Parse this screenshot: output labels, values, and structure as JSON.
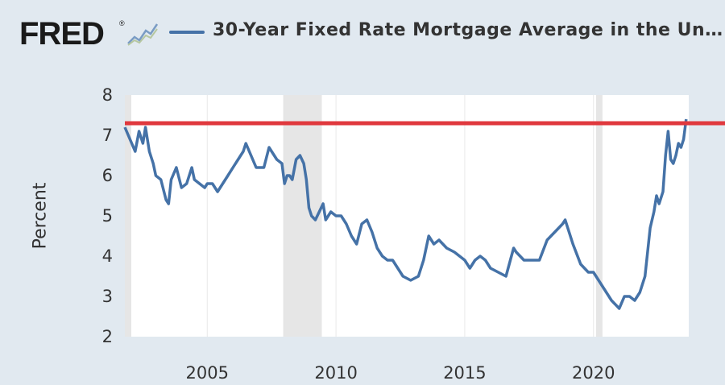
{
  "header": {
    "logo_text": "FRED",
    "logo_mark": "®",
    "logo_icon": "line-chart-icon",
    "title": "30-Year Fixed Rate Mortgage Average in the Un…"
  },
  "colors": {
    "background": "#e1e9f0",
    "plot_background": "#ffffff",
    "series": "#4572a7",
    "recession_band": "#e6e6e6",
    "reference_line": "#e0393e"
  },
  "chart_data": {
    "type": "line",
    "title": "30-Year Fixed Rate Mortgage Average in the Un…",
    "xlabel": "",
    "ylabel": "Percent",
    "xlim": [
      2001.8,
      2023.7
    ],
    "ylim": [
      2,
      8
    ],
    "x_ticks": [
      2005,
      2010,
      2015,
      2020
    ],
    "y_ticks": [
      2,
      3,
      4,
      5,
      6,
      7,
      8
    ],
    "grid": "vertical",
    "recessions": [
      [
        2001.8,
        2001.85
      ],
      [
        2007.95,
        2009.45
      ],
      [
        2020.1,
        2020.3
      ]
    ],
    "reference_lines": [
      {
        "y": 7.3,
        "color": "#e0393e"
      }
    ],
    "series": [
      {
        "x": [
          2001.8,
          2002.0,
          2002.2,
          2002.35,
          2002.5,
          2002.6,
          2002.75,
          2002.9,
          2003.0,
          2003.2,
          2003.4,
          2003.5,
          2003.6,
          2003.8,
          2004.0,
          2004.2,
          2004.4,
          2004.5,
          2004.7,
          2004.9,
          2005.0,
          2005.2,
          2005.4,
          2005.6,
          2005.8,
          2006.0,
          2006.2,
          2006.4,
          2006.5,
          2006.7,
          2006.9,
          2007.0,
          2007.2,
          2007.4,
          2007.5,
          2007.7,
          2007.9,
          2008.0,
          2008.1,
          2008.2,
          2008.3,
          2008.45,
          2008.6,
          2008.75,
          2008.85,
          2008.95,
          2009.05,
          2009.2,
          2009.35,
          2009.5,
          2009.6,
          2009.8,
          2010.0,
          2010.2,
          2010.4,
          2010.6,
          2010.8,
          2011.0,
          2011.2,
          2011.4,
          2011.6,
          2011.8,
          2012.0,
          2012.2,
          2012.4,
          2012.6,
          2012.9,
          2013.2,
          2013.4,
          2013.6,
          2013.8,
          2014.0,
          2014.3,
          2014.6,
          2015.0,
          2015.2,
          2015.4,
          2015.6,
          2015.8,
          2016.0,
          2016.3,
          2016.6,
          2016.9,
          2017.0,
          2017.3,
          2017.6,
          2017.9,
          2018.2,
          2018.5,
          2018.8,
          2018.9,
          2019.2,
          2019.5,
          2019.8,
          2020.0,
          2020.2,
          2020.4,
          2020.7,
          2021.0,
          2021.2,
          2021.4,
          2021.6,
          2021.8,
          2022.0,
          2022.2,
          2022.35,
          2022.45,
          2022.55,
          2022.7,
          2022.8,
          2022.9,
          2023.0,
          2023.1,
          2023.2,
          2023.3,
          2023.4,
          2023.5,
          2023.6
        ],
        "y": [
          7.2,
          6.9,
          6.6,
          7.1,
          6.8,
          7.2,
          6.6,
          6.3,
          6.0,
          5.9,
          5.4,
          5.3,
          5.9,
          6.2,
          5.7,
          5.8,
          6.2,
          5.9,
          5.8,
          5.7,
          5.8,
          5.8,
          5.6,
          5.8,
          6.0,
          6.2,
          6.4,
          6.6,
          6.8,
          6.5,
          6.2,
          6.2,
          6.2,
          6.7,
          6.6,
          6.4,
          6.3,
          5.8,
          6.0,
          6.0,
          5.9,
          6.4,
          6.5,
          6.3,
          5.9,
          5.2,
          5.0,
          4.9,
          5.1,
          5.3,
          4.9,
          5.1,
          5.0,
          5.0,
          4.8,
          4.5,
          4.3,
          4.8,
          4.9,
          4.6,
          4.2,
          4.0,
          3.9,
          3.9,
          3.7,
          3.5,
          3.4,
          3.5,
          3.9,
          4.5,
          4.3,
          4.4,
          4.2,
          4.1,
          3.9,
          3.7,
          3.9,
          4.0,
          3.9,
          3.7,
          3.6,
          3.5,
          4.2,
          4.1,
          3.9,
          3.9,
          3.9,
          4.4,
          4.6,
          4.8,
          4.9,
          4.3,
          3.8,
          3.6,
          3.6,
          3.4,
          3.2,
          2.9,
          2.7,
          3.0,
          3.0,
          2.9,
          3.1,
          3.5,
          4.7,
          5.1,
          5.5,
          5.3,
          5.6,
          6.5,
          7.1,
          6.4,
          6.3,
          6.5,
          6.8,
          6.7,
          6.9,
          7.4
        ]
      }
    ]
  }
}
